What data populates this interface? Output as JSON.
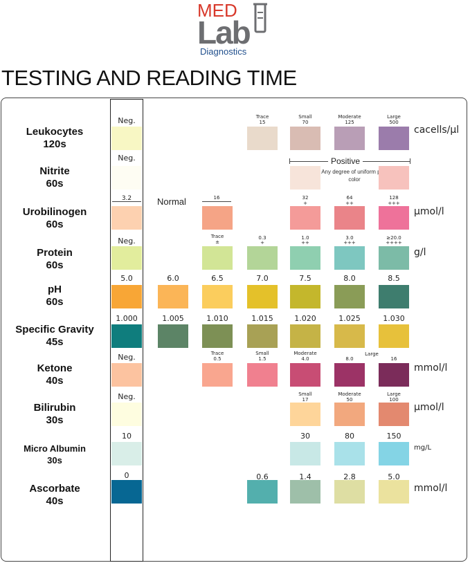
{
  "logo": {
    "med": "MED",
    "lab": "Lab",
    "diagnostics": "Diagnostics"
  },
  "title": "TESTING AND READING TIME",
  "rows": [
    {
      "name": "Leukocytes",
      "time": "120s",
      "unit": "cacells/μl"
    },
    {
      "name": "Nitrite",
      "time": "60s",
      "unit": ""
    },
    {
      "name": "Urobilinogen",
      "time": "60s",
      "unit": "μmol/l"
    },
    {
      "name": "Protein",
      "time": "60s",
      "unit": "g/l"
    },
    {
      "name": "pH",
      "time": "60s",
      "unit": ""
    },
    {
      "name": "Specific Gravity",
      "time": "45s",
      "unit": ""
    },
    {
      "name": "Ketone",
      "time": "40s",
      "unit": "mmol/l"
    },
    {
      "name": "Bilirubin",
      "time": "30s",
      "unit": "μmol/l"
    },
    {
      "name": "Micro Albumin",
      "time": "30s",
      "unit": "mg/L"
    },
    {
      "name": "Ascorbate",
      "time": "40s",
      "unit": "mmol/l"
    }
  ],
  "labels": {
    "leuko": {
      "neg": "Neg.",
      "trace": "Trace",
      "v15": "15",
      "small": "Small",
      "v70": "70",
      "moderate": "Moderate",
      "v125": "125",
      "large": "Large",
      "v500": "500"
    },
    "nitrite": {
      "neg": "Neg.",
      "positive": "Positive",
      "note": "Any degree of uniform pink color"
    },
    "uro": {
      "v32": "3.2",
      "normal": "Normal",
      "v16": "16",
      "v32b": "32",
      "p1": "+",
      "v64": "64",
      "p2": "++",
      "v128": "128",
      "p3": "+++"
    },
    "protein": {
      "neg": "Neg.",
      "trace": "Trace",
      "pm": "±",
      "v03": "0.3",
      "p1": "+",
      "v10": "1.0",
      "p2": "++",
      "v30": "3.0",
      "p3": "+++",
      "v200": "≥20.0",
      "p4": "++++"
    },
    "ph": [
      "5.0",
      "6.0",
      "6.5",
      "7.0",
      "7.5",
      "8.0",
      "8.5"
    ],
    "sg": [
      "1.000",
      "1.005",
      "1.010",
      "1.015",
      "1.020",
      "1.025",
      "1.030"
    ],
    "ketone": {
      "neg": "Neg.",
      "trace": "Trace",
      "v05": "0.5",
      "small": "Small",
      "v15": "1.5",
      "moderate": "Moderate",
      "v40": "4.0",
      "v80": "8.0",
      "large": "Large",
      "v16": "16"
    },
    "bili": {
      "neg": "Neg.",
      "small": "Small",
      "v17": "17",
      "moderate": "Moderate",
      "v50": "50",
      "large": "Large",
      "v100": "100"
    },
    "albumin": [
      "10",
      "30",
      "80",
      "150"
    ],
    "ascorbate": [
      "0",
      "0.6",
      "1.4",
      "2.8",
      "5.0"
    ]
  },
  "swatch_colors": {
    "leuko": [
      "#f8f7c4",
      "#e9dacb",
      "#d9bcb3",
      "#b99eb6",
      "#9b7cab"
    ],
    "nitrite": [
      "#fefdf3",
      "#f7e4da",
      "#f7c2bd"
    ],
    "uro": [
      "#fdd1b0",
      "#f5a486",
      "#f49b99",
      "#ea8489",
      "#ee729a"
    ],
    "protein": [
      "#e2ed9d",
      "#d2e596",
      "#b3d598",
      "#8fcfb0",
      "#7ec7c0",
      "#7cbba7"
    ],
    "ph": [
      "#f8a636",
      "#fbb557",
      "#fbcd5d",
      "#e4c12a",
      "#c4b72c",
      "#8a9c57",
      "#3e7d6e"
    ],
    "sg": [
      "#0f7d7d",
      "#5c8466",
      "#7d9055",
      "#a8a155",
      "#c5b346",
      "#d7b94a",
      "#e7c13b"
    ],
    "ketone": [
      "#fcc3a0",
      "#f9a68f",
      "#f0808f",
      "#c84d74",
      "#9c3366",
      "#7b2c5a"
    ],
    "bili": [
      "#fefde0",
      "#fed59a",
      "#f2a87e",
      "#e3896f"
    ],
    "albumin": [
      "#d9eee8",
      "#c8e8e6",
      "#a9e1e9",
      "#84d4e5"
    ],
    "ascorbate": [
      "#076793",
      "#53afad",
      "#9ebfa9",
      "#dedea3",
      "#ebe29e"
    ]
  }
}
